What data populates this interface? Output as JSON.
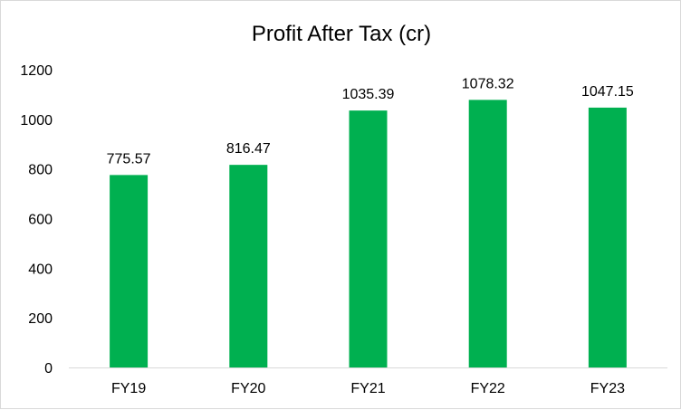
{
  "chart_data": {
    "type": "bar",
    "title": "Profit After Tax (cr)",
    "categories": [
      "FY19",
      "FY20",
      "FY21",
      "FY22",
      "FY23"
    ],
    "values": [
      775.57,
      816.47,
      1035.39,
      1078.32,
      1047.15
    ],
    "value_labels": [
      "775.57",
      "816.47",
      "1035.39",
      "1078.32",
      "1047.15"
    ],
    "ylim": [
      0,
      1200
    ],
    "yticks": [
      0,
      200,
      400,
      600,
      800,
      1000,
      1200
    ],
    "ytick_labels": [
      "0",
      "200",
      "400",
      "600",
      "800",
      "1000",
      "1200"
    ],
    "bar_color": "#00b050",
    "axis_color": "#d9d9d9",
    "grid": false,
    "legend": "none"
  }
}
